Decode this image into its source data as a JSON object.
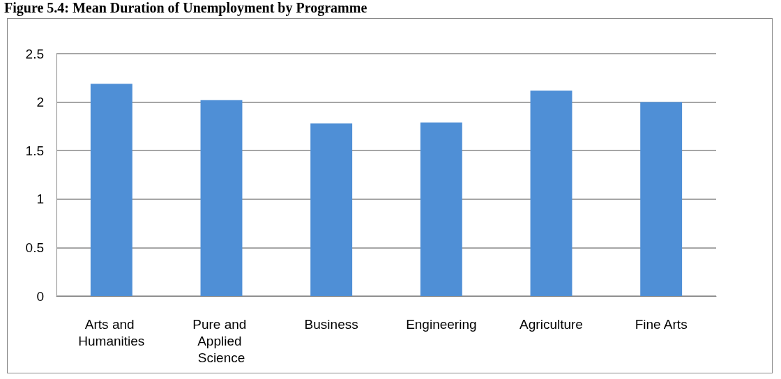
{
  "chart_data": {
    "type": "bar",
    "title": "Figure 5.4: Mean Duration of Unemployment by Programme",
    "categories": [
      "Arts and Humanities",
      "Pure and Applied Science",
      "Business",
      "Engineering",
      "Agriculture",
      "Fine Arts"
    ],
    "values": [
      2.19,
      2.02,
      1.78,
      1.79,
      2.12,
      2.0
    ],
    "color": "#4f8fd6",
    "ylim": [
      0,
      2.5
    ],
    "yticks": [
      0,
      0.5,
      1,
      1.5,
      2,
      2.5
    ],
    "grid": "y"
  }
}
